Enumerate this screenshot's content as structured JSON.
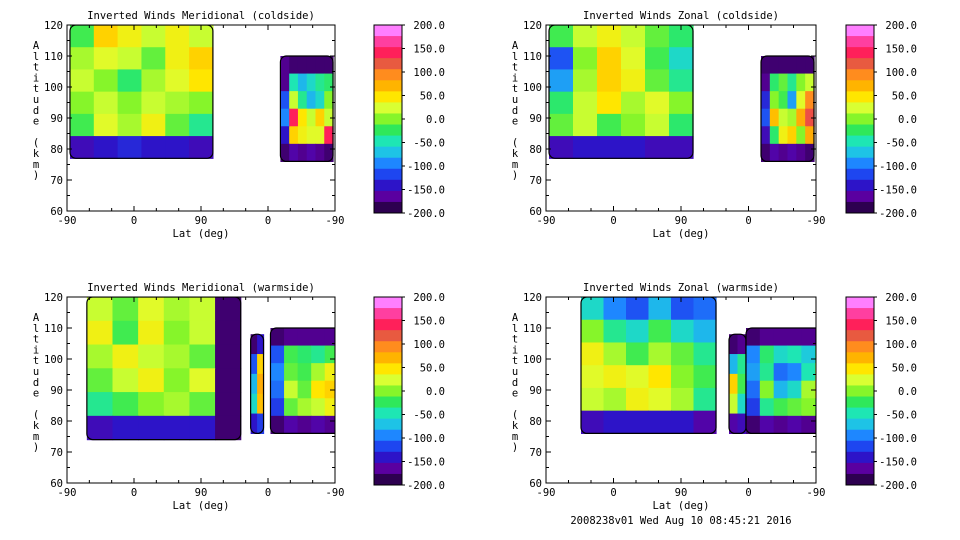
{
  "footer": "2008238v01 Wed Aug 10 08:45:21 2016",
  "colorbar": {
    "ticks": [
      "200.0",
      "150.0",
      "100.0",
      "50.0",
      "0.0",
      "-50.0",
      "-100.0",
      "-150.0",
      "-200.0"
    ],
    "colors": [
      "#ff7fff",
      "#ff3fa0",
      "#ff205a",
      "#e85a40",
      "#ff8c1e",
      "#ffb400",
      "#ffe600",
      "#d9ff33",
      "#86f52a",
      "#2fe85a",
      "#1ee6b4",
      "#1ec3e6",
      "#1e87ff",
      "#1e46f0",
      "#2d14c8",
      "#5a00a0",
      "#2d0050"
    ]
  },
  "chart_data": [
    {
      "type": "heatmap",
      "title": "Inverted Winds Meridional (coldside)",
      "xlabel": "Lat (deg)",
      "ylabel": "Altitude (km)",
      "xticks": [
        "-90",
        "0",
        "90",
        "0",
        "-90"
      ],
      "yticks": [
        "120",
        "110",
        "100",
        "90",
        "80",
        "70",
        "60"
      ],
      "ylim": [
        60,
        120
      ],
      "vrange": [
        -200,
        200
      ],
      "regions": [
        {
          "x": [
            -87,
            57
          ],
          "y": [
            77,
            120
          ],
          "cells": [
            [
              -20,
              60,
              40,
              20,
              40,
              20
            ],
            [
              10,
              30,
              20,
              -10,
              40,
              60
            ],
            [
              20,
              0,
              -30,
              10,
              30,
              50
            ],
            [
              0,
              20,
              0,
              20,
              10,
              0
            ],
            [
              -20,
              30,
              10,
              40,
              -10,
              -40
            ],
            [
              -160,
              -150,
              -140,
              -150,
              -150,
              -160
            ]
          ]
        },
        {
          "x": [
            125,
            178
          ],
          "y": [
            76,
            110
          ],
          "cells": [
            [
              -180,
              -190,
              -190,
              -190,
              -190,
              -190
            ],
            [
              -180,
              -50,
              -80,
              -60,
              -40,
              -30
            ],
            [
              -120,
              20,
              -40,
              -80,
              -60,
              0
            ],
            [
              -100,
              150,
              50,
              20,
              60,
              20
            ],
            [
              -150,
              60,
              40,
              30,
              30,
              150
            ],
            [
              -190,
              -170,
              -180,
              -170,
              -180,
              -190
            ]
          ]
        }
      ]
    },
    {
      "type": "heatmap",
      "title": "Inverted Winds Zonal (coldside)",
      "xlabel": "Lat (deg)",
      "ylabel": "Altitude (km)",
      "xticks": [
        "-90",
        "0",
        "90",
        "0",
        "-90"
      ],
      "yticks": [
        "120",
        "110",
        "100",
        "90",
        "80",
        "70",
        "60"
      ],
      "ylim": [
        60,
        120
      ],
      "vrange": [
        -200,
        200
      ],
      "regions": [
        {
          "x": [
            -87,
            57
          ],
          "y": [
            77,
            120
          ],
          "cells": [
            [
              -20,
              20,
              40,
              20,
              -10,
              -30
            ],
            [
              -120,
              0,
              60,
              30,
              -20,
              -60
            ],
            [
              -90,
              10,
              60,
              40,
              -10,
              -40
            ],
            [
              -30,
              20,
              50,
              10,
              30,
              0
            ],
            [
              -10,
              20,
              -20,
              0,
              20,
              -30
            ],
            [
              -160,
              -150,
              -150,
              -150,
              -160,
              -160
            ]
          ]
        },
        {
          "x": [
            125,
            178
          ],
          "y": [
            76,
            110
          ],
          "cells": [
            [
              -190,
              -190,
              -190,
              -190,
              -190,
              -190
            ],
            [
              -180,
              -30,
              -10,
              -40,
              0,
              20
            ],
            [
              -140,
              0,
              -20,
              -90,
              30,
              100
            ],
            [
              -120,
              70,
              20,
              10,
              80,
              130
            ],
            [
              -160,
              -30,
              40,
              60,
              0,
              80
            ],
            [
              -190,
              -170,
              -180,
              -170,
              -180,
              -190
            ]
          ]
        }
      ]
    },
    {
      "type": "heatmap",
      "title": "Inverted Winds Meridional (warmside)",
      "xlabel": "Lat (deg)",
      "ylabel": "Altitude (km)",
      "xticks": [
        "-90",
        "0",
        "90",
        "0",
        "-90"
      ],
      "yticks": [
        "120",
        "110",
        "100",
        "90",
        "80",
        "70",
        "60"
      ],
      "ylim": [
        60,
        120
      ],
      "vrange": [
        -200,
        200
      ],
      "regions": [
        {
          "x": [
            -70,
            85
          ],
          "y": [
            74,
            120
          ],
          "cells": [
            [
              20,
              -10,
              30,
              10,
              20,
              -190
            ],
            [
              40,
              -20,
              40,
              0,
              20,
              -190
            ],
            [
              10,
              40,
              20,
              10,
              -10,
              -190
            ],
            [
              -10,
              20,
              40,
              0,
              30,
              -190
            ],
            [
              -40,
              -20,
              0,
              10,
              -10,
              -190
            ],
            [
              -160,
              -150,
              -150,
              -150,
              -150,
              -190
            ]
          ]
        },
        {
          "x": [
            95,
            108
          ],
          "y": [
            76,
            108
          ],
          "cells": [
            [
              -190,
              -150
            ],
            [
              -120,
              60
            ],
            [
              -80,
              80
            ],
            [
              -60,
              70
            ],
            [
              -150,
              -130
            ]
          ]
        },
        {
          "x": [
            115,
            197
          ],
          "y": [
            76,
            110
          ],
          "cells": [
            [
              -190,
              -180,
              -180,
              -180,
              -180,
              -190
            ],
            [
              -120,
              -20,
              -30,
              -40,
              -20,
              -80
            ],
            [
              -100,
              -10,
              -20,
              10,
              40,
              -60
            ],
            [
              -110,
              20,
              -10,
              50,
              60,
              -40
            ],
            [
              -130,
              -10,
              10,
              20,
              40,
              -60
            ],
            [
              -190,
              -170,
              -180,
              -170,
              -180,
              -190
            ]
          ]
        }
      ]
    },
    {
      "type": "heatmap",
      "title": "Inverted Winds Zonal (warmside)",
      "xlabel": "Lat (deg)",
      "ylabel": "Altitude (km)",
      "xticks": [
        "-90",
        "0",
        "90",
        "0",
        "-90"
      ],
      "yticks": [
        "120",
        "110",
        "100",
        "90",
        "80",
        "70",
        "60"
      ],
      "ylim": [
        60,
        120
      ],
      "vrange": [
        -200,
        200
      ],
      "regions": [
        {
          "x": [
            -55,
            80
          ],
          "y": [
            76,
            120
          ],
          "cells": [
            [
              -60,
              -100,
              -120,
              -80,
              -120,
              -110
            ],
            [
              0,
              -40,
              -60,
              -20,
              -60,
              -80
            ],
            [
              40,
              10,
              -20,
              10,
              -10,
              -40
            ],
            [
              30,
              40,
              30,
              50,
              0,
              -20
            ],
            [
              20,
              10,
              40,
              30,
              10,
              -40
            ],
            [
              -160,
              -150,
              -150,
              -150,
              -150,
              -170
            ]
          ]
        },
        {
          "x": [
            93,
            110
          ],
          "y": [
            76,
            108
          ],
          "cells": [
            [
              -190,
              -180
            ],
            [
              -80,
              -40
            ],
            [
              60,
              -20
            ],
            [
              20,
              -60
            ],
            [
              -170,
              -160
            ]
          ]
        },
        {
          "x": [
            110,
            193
          ],
          "y": [
            76,
            110
          ],
          "cells": [
            [
              -190,
              -180,
              -180,
              -180,
              -180,
              -190
            ],
            [
              -100,
              -30,
              -60,
              -50,
              -70,
              -20
            ],
            [
              -90,
              -40,
              -110,
              -100,
              -50,
              20
            ],
            [
              -110,
              0,
              -80,
              -60,
              10,
              60
            ],
            [
              -130,
              -40,
              -20,
              -10,
              0,
              -20
            ],
            [
              -190,
              -170,
              -180,
              -170,
              -180,
              -190
            ]
          ]
        }
      ]
    }
  ]
}
